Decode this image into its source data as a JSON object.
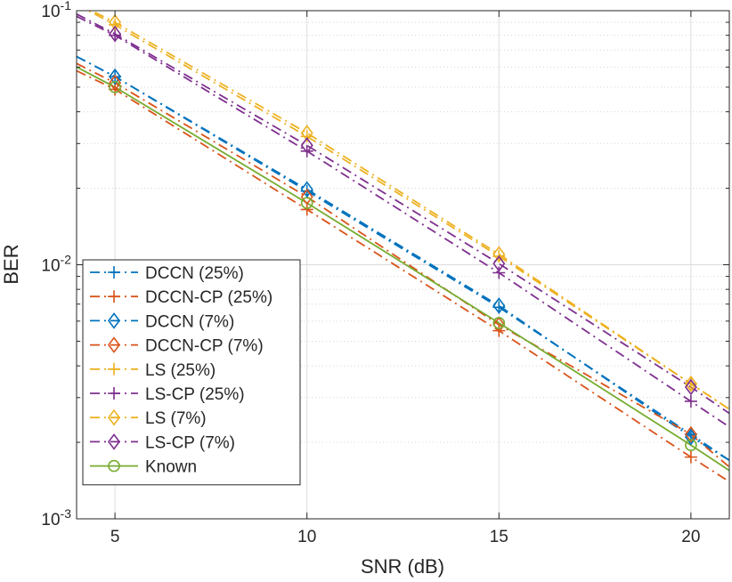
{
  "chart_data": {
    "type": "line",
    "title": "",
    "xlabel": "SNR (dB)",
    "ylabel": "BER",
    "xscale": "linear",
    "yscale": "log",
    "xlim": [
      4,
      21
    ],
    "ylim": [
      0.001,
      0.1
    ],
    "grid": true,
    "x_ticks": [
      5,
      10,
      15,
      20
    ],
    "x_tick_labels": [
      "5",
      "10",
      "15",
      "20"
    ],
    "y_ticks": [
      0.001,
      0.01,
      0.1
    ],
    "y_tick_labels": [
      {
        "base": "10",
        "exp": "-3"
      },
      {
        "base": "10",
        "exp": "-2"
      },
      {
        "base": "10",
        "exp": "-1"
      }
    ],
    "legend_position": "bottom-left",
    "series": [
      {
        "name": "DCCN (25%)",
        "color": "#0072BD",
        "dash": "dashdot",
        "marker": "plus",
        "line_x": [
          4,
          5,
          10,
          15,
          20,
          21
        ],
        "line_y": [
          0.066,
          0.055,
          0.0195,
          0.0068,
          0.00215,
          0.0017
        ],
        "marker_x": [
          5,
          10,
          15,
          20
        ],
        "marker_y": [
          0.055,
          0.0195,
          0.0068,
          0.00215
        ]
      },
      {
        "name": "DCCN-CP (25%)",
        "color": "#D95319",
        "dash": "dashdot",
        "marker": "plus",
        "line_x": [
          4,
          5,
          10,
          15,
          20,
          21
        ],
        "line_y": [
          0.058,
          0.049,
          0.0165,
          0.0055,
          0.00175,
          0.0014
        ],
        "marker_x": [
          5,
          10,
          15,
          20
        ],
        "marker_y": [
          0.049,
          0.0165,
          0.0055,
          0.00175
        ]
      },
      {
        "name": "DCCN (7%)",
        "color": "#0072BD",
        "dash": "dashdot",
        "marker": "diamond",
        "line_x": [
          4,
          5,
          10,
          15,
          20,
          21
        ],
        "line_y": [
          0.066,
          0.055,
          0.0198,
          0.0069,
          0.0021,
          0.0017
        ],
        "marker_x": [
          5,
          10,
          15,
          20
        ],
        "marker_y": [
          0.055,
          0.0198,
          0.0069,
          0.0021
        ]
      },
      {
        "name": "DCCN-CP (7%)",
        "color": "#D95319",
        "dash": "dashdot",
        "marker": "diamond",
        "line_x": [
          4,
          5,
          10,
          15,
          20,
          21
        ],
        "line_y": [
          0.062,
          0.052,
          0.0185,
          0.0058,
          0.00215,
          0.0016
        ],
        "marker_x": [
          5,
          10,
          15,
          20
        ],
        "marker_y": [
          0.052,
          0.0185,
          0.0058,
          0.00215
        ]
      },
      {
        "name": "LS (25%)",
        "color": "#EDB120",
        "dash": "dashdot",
        "marker": "plus",
        "line_x": [
          4,
          5,
          10,
          15,
          20,
          21
        ],
        "line_y": [
          0.106,
          0.088,
          0.032,
          0.0108,
          0.0034,
          0.0027
        ],
        "marker_x": [
          5,
          10,
          15,
          20
        ],
        "marker_y": [
          0.088,
          0.032,
          0.0108,
          0.0034
        ]
      },
      {
        "name": "LS-CP (25%)",
        "color": "#7E2F8E",
        "dash": "dashdot",
        "marker": "plus",
        "line_x": [
          4,
          5,
          10,
          15,
          20,
          21
        ],
        "line_y": [
          0.095,
          0.08,
          0.028,
          0.0093,
          0.0029,
          0.0023
        ],
        "marker_x": [
          5,
          10,
          15,
          20
        ],
        "marker_y": [
          0.08,
          0.028,
          0.0093,
          0.0029
        ]
      },
      {
        "name": "LS (7%)",
        "color": "#EDB120",
        "dash": "dashdot",
        "marker": "diamond",
        "line_x": [
          4,
          5,
          10,
          15,
          20,
          21
        ],
        "line_y": [
          0.107,
          0.09,
          0.033,
          0.011,
          0.0034,
          0.0027
        ],
        "marker_x": [
          5,
          10,
          15,
          20
        ],
        "marker_y": [
          0.09,
          0.033,
          0.011,
          0.0034
        ]
      },
      {
        "name": "LS-CP (7%)",
        "color": "#7E2F8E",
        "dash": "dashdot",
        "marker": "diamond",
        "line_x": [
          4,
          5,
          10,
          15,
          20,
          21
        ],
        "line_y": [
          0.097,
          0.081,
          0.0295,
          0.0101,
          0.0033,
          0.0026
        ],
        "marker_x": [
          5,
          10,
          15,
          20
        ],
        "marker_y": [
          0.081,
          0.0295,
          0.0101,
          0.0033
        ]
      },
      {
        "name": "Known",
        "color": "#77AC30",
        "dash": "solid",
        "marker": "circle",
        "line_x": [
          4,
          5,
          10,
          15,
          20,
          21
        ],
        "line_y": [
          0.06,
          0.05,
          0.0175,
          0.0059,
          0.00195,
          0.00155
        ],
        "marker_x": [
          5,
          10,
          15,
          20
        ],
        "marker_y": [
          0.05,
          0.0175,
          0.0059,
          0.00195
        ]
      }
    ]
  }
}
